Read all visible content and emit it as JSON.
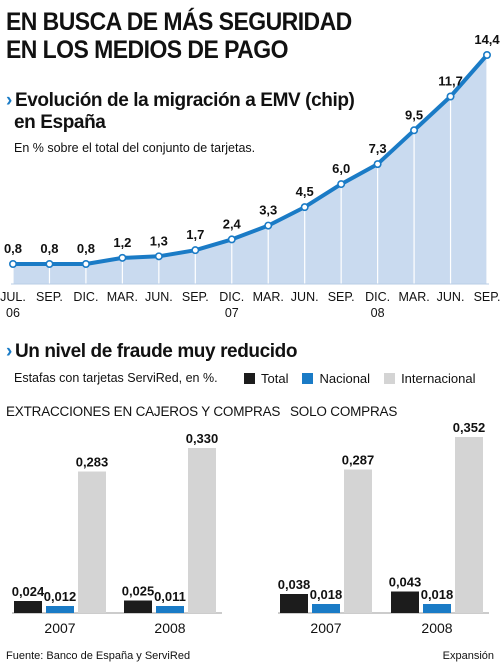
{
  "header": {
    "title_line1": "EN BUSCA DE MÁS SEGURIDAD",
    "title_line2": "EN LOS MEDIOS DE PAGO"
  },
  "section1": {
    "title_line1": "Evolución de la migración a EMV (chip)",
    "title_line2": "en España",
    "subtitle": "En % sobre el total del conjunto de tarjetas."
  },
  "section2": {
    "title": "Un nivel de fraude muy reducido",
    "subtitle": "Estafas con tarjetas ServiRed, en %."
  },
  "legend": {
    "total": "Total",
    "nacional": "Nacional",
    "internacional": "Internacional"
  },
  "footer": {
    "source": "Fuente: Banco de España y ServiRed",
    "brand": "Expansión"
  },
  "colors": {
    "accent": "#1a7bc6",
    "area_fill": "#c9daef",
    "total": "#1c1c1c",
    "nacional": "#1a7bc6",
    "internacional": "#d4d4d4"
  },
  "chart_data": [
    {
      "type": "line",
      "title": "Evolución de la migración a EMV (chip) en España",
      "subtitle": "En % sobre el total del conjunto de tarjetas.",
      "x": [
        "JUL. 06",
        "SEP.",
        "DIC.",
        "MAR.",
        "JUN.",
        "SEP.",
        "DIC. 07",
        "MAR.",
        "JUN.",
        "SEP.",
        "DIC. 08",
        "MAR.",
        "JUN.",
        "SEP."
      ],
      "x_labels": [
        [
          "JUL.",
          "06"
        ],
        [
          "SEP."
        ],
        [
          "DIC."
        ],
        [
          "MAR."
        ],
        [
          "JUN."
        ],
        [
          "SEP."
        ],
        [
          "DIC.",
          "07"
        ],
        [
          "MAR."
        ],
        [
          "JUN."
        ],
        [
          "SEP."
        ],
        [
          "DIC.",
          "08"
        ],
        [
          "MAR."
        ],
        [
          "JUN."
        ],
        [
          "SEP."
        ]
      ],
      "values": [
        0.8,
        0.8,
        0.8,
        1.2,
        1.3,
        1.7,
        2.4,
        3.3,
        4.5,
        6.0,
        7.3,
        9.5,
        11.7,
        14.4
      ],
      "value_labels": [
        "0,8",
        "0,8",
        "0,8",
        "1,2",
        "1,3",
        "1,7",
        "2,4",
        "3,3",
        "4,5",
        "6,0",
        "7,3",
        "9,5",
        "11,7",
        "14,4"
      ],
      "ylim": [
        0,
        14.4
      ]
    },
    {
      "type": "bar",
      "title": "EXTRACCIONES EN CAJEROS Y COMPRAS",
      "categories": [
        "2007",
        "2008"
      ],
      "series": [
        {
          "name": "Total",
          "values": [
            0.024,
            0.025
          ],
          "labels": [
            "0,024",
            "0,025"
          ]
        },
        {
          "name": "Nacional",
          "values": [
            0.012,
            0.011
          ],
          "labels": [
            "0,012",
            "0,011"
          ]
        },
        {
          "name": "Internacional",
          "values": [
            0.283,
            0.33
          ],
          "labels": [
            "0,283",
            "0,330"
          ]
        }
      ]
    },
    {
      "type": "bar",
      "title": "SOLO COMPRAS",
      "categories": [
        "2007",
        "2008"
      ],
      "series": [
        {
          "name": "Total",
          "values": [
            0.038,
            0.043
          ],
          "labels": [
            "0,038",
            "0,043"
          ]
        },
        {
          "name": "Nacional",
          "values": [
            0.018,
            0.018
          ],
          "labels": [
            "0,018",
            "0,018"
          ]
        },
        {
          "name": "Internacional",
          "values": [
            0.287,
            0.352
          ],
          "labels": [
            "0,287",
            "0,352"
          ]
        }
      ]
    }
  ]
}
